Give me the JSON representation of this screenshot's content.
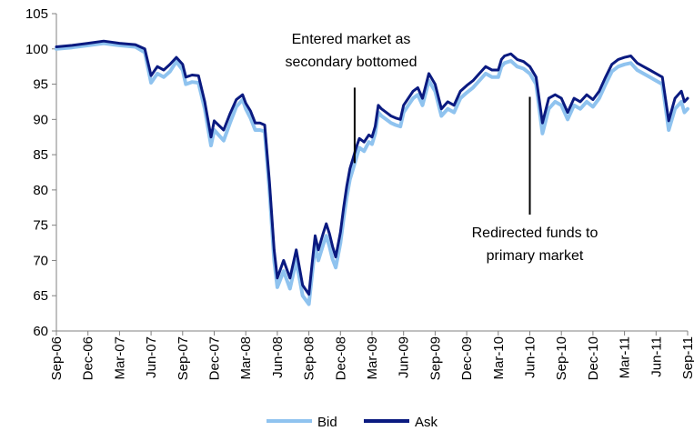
{
  "chart_data": {
    "type": "line",
    "title": "",
    "xlabel": "",
    "ylabel": "",
    "ylim": [
      60,
      105
    ],
    "yticks": [
      60,
      65,
      70,
      75,
      80,
      85,
      90,
      95,
      100,
      105
    ],
    "xticks": [
      "Sep-06",
      "Dec-06",
      "Mar-07",
      "Jun-07",
      "Sep-07",
      "Dec-07",
      "Mar-08",
      "Jun-08",
      "Sep-08",
      "Dec-08",
      "Mar-09",
      "Jun-09",
      "Sep-09",
      "Dec-09",
      "Mar-10",
      "Jun-10",
      "Sep-10",
      "Dec-10",
      "Mar-11",
      "Jun-11",
      "Sep-11"
    ],
    "grid": false,
    "legend": "bottom",
    "x": [
      0,
      0.5,
      1,
      1.5,
      2,
      2.5,
      2.8,
      3,
      3.2,
      3.4,
      3.6,
      3.8,
      4,
      4.1,
      4.3,
      4.5,
      4.7,
      4.9,
      5,
      5.3,
      5.5,
      5.7,
      5.9,
      6,
      6.15,
      6.3,
      6.45,
      6.6,
      6.75,
      6.9,
      7,
      7.2,
      7.4,
      7.6,
      7.8,
      8,
      8.1,
      8.2,
      8.3,
      8.45,
      8.55,
      8.65,
      8.75,
      8.85,
      9,
      9.1,
      9.2,
      9.3,
      9.4,
      9.5,
      9.6,
      9.75,
      9.9,
      10,
      10.1,
      10.2,
      10.3,
      10.45,
      10.6,
      10.75,
      10.9,
      11,
      11.15,
      11.3,
      11.45,
      11.6,
      11.8,
      12,
      12.2,
      12.4,
      12.6,
      12.8,
      13,
      13.2,
      13.4,
      13.6,
      13.8,
      14,
      14.1,
      14.2,
      14.4,
      14.6,
      14.8,
      15,
      15.2,
      15.4,
      15.6,
      15.8,
      16,
      16.2,
      16.4,
      16.6,
      16.8,
      17,
      17.2,
      17.4,
      17.6,
      17.8,
      18,
      18.2,
      18.4,
      18.6,
      18.8,
      19,
      19.2,
      19.4,
      19.6,
      19.8,
      19.9,
      20
    ],
    "series": [
      {
        "name": "Bid",
        "color": "#8fc3ef",
        "values": [
          100.0,
          100.2,
          100.5,
          100.8,
          100.5,
          100.3,
          99.5,
          95.2,
          96.5,
          96.0,
          96.8,
          98.2,
          97.0,
          95.0,
          95.3,
          95.2,
          91.5,
          86.3,
          88.5,
          87.0,
          89.5,
          91.8,
          92.8,
          91.5,
          90.2,
          88.5,
          88.5,
          88.3,
          80.0,
          70.0,
          66.2,
          68.5,
          66.0,
          70.0,
          65.0,
          63.8,
          68.0,
          72.0,
          70.0,
          72.2,
          73.5,
          72.0,
          70.2,
          69.0,
          72.5,
          76.0,
          79.0,
          81.5,
          83.0,
          84.5,
          86.0,
          85.5,
          86.8,
          86.5,
          88.0,
          91.0,
          90.5,
          90.0,
          89.5,
          89.2,
          89.0,
          91.0,
          92.0,
          93.0,
          93.5,
          92.0,
          95.5,
          94.0,
          90.5,
          91.5,
          91.0,
          93.0,
          93.8,
          94.5,
          95.5,
          96.5,
          96.0,
          96.0,
          97.5,
          98.0,
          98.3,
          97.5,
          97.2,
          96.5,
          95.0,
          88.0,
          91.5,
          92.5,
          92.0,
          90.0,
          92.0,
          91.5,
          92.5,
          91.8,
          93.0,
          95.0,
          96.8,
          97.5,
          97.8,
          98.0,
          97.0,
          96.5,
          96.0,
          95.5,
          95.0,
          88.5,
          91.5,
          92.5,
          91.0,
          91.5
        ]
      },
      {
        "name": "Ask",
        "color": "#0a1a80",
        "values": [
          100.3,
          100.5,
          100.8,
          101.1,
          100.8,
          100.6,
          100.0,
          96.2,
          97.5,
          97.0,
          97.8,
          98.8,
          97.8,
          96.0,
          96.3,
          96.2,
          92.5,
          87.5,
          89.8,
          88.5,
          90.8,
          92.8,
          93.5,
          92.3,
          91.2,
          89.5,
          89.5,
          89.2,
          81.2,
          71.5,
          67.5,
          70.0,
          67.5,
          71.5,
          66.5,
          65.2,
          69.5,
          73.5,
          71.5,
          73.8,
          75.2,
          73.8,
          72.0,
          70.5,
          74.0,
          77.5,
          80.5,
          83.0,
          84.5,
          86.0,
          87.3,
          86.8,
          87.8,
          87.5,
          89.0,
          92.0,
          91.5,
          91.0,
          90.5,
          90.2,
          90.0,
          92.0,
          93.0,
          94.0,
          94.5,
          93.0,
          96.5,
          95.0,
          91.5,
          92.5,
          92.0,
          94.0,
          94.8,
          95.5,
          96.5,
          97.5,
          97.0,
          97.0,
          98.5,
          99.0,
          99.3,
          98.5,
          98.2,
          97.5,
          96.0,
          89.5,
          93.0,
          93.5,
          93.0,
          91.0,
          93.0,
          92.5,
          93.5,
          92.8,
          94.0,
          96.0,
          97.8,
          98.5,
          98.8,
          99.0,
          98.0,
          97.5,
          97.0,
          96.5,
          96.0,
          89.8,
          93.0,
          94.0,
          92.5,
          93.0
        ]
      }
    ],
    "annotations": [
      {
        "lines": [
          "Entered market as",
          "secondary bottomed"
        ],
        "x": 9.45,
        "y_top": 94.5,
        "y_bottom": 83.8
      },
      {
        "lines": [
          "Redirected funds to",
          "primary market"
        ],
        "x": 15.0,
        "y_top": 93.2,
        "y_bottom": 76.5
      }
    ]
  }
}
